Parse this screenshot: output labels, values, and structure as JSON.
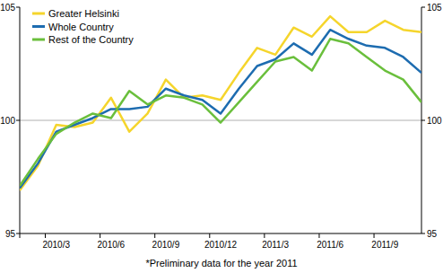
{
  "chart_data": {
    "type": "line",
    "footnote": "*Preliminary data for the year 2011",
    "categories": [
      null,
      null,
      "2010/3",
      null,
      null,
      "2010/6",
      null,
      null,
      "2010/9",
      null,
      null,
      "2010/12",
      null,
      null,
      "2011/3",
      null,
      null,
      "2011/6",
      null,
      null,
      "2011/9",
      null,
      null
    ],
    "series": [
      {
        "name": "Greater Helsinki",
        "color": "#f5d52c",
        "values": [
          96.9,
          98.0,
          99.8,
          99.7,
          99.9,
          101.0,
          99.5,
          100.3,
          101.8,
          101.0,
          101.1,
          100.9,
          102.1,
          103.2,
          102.9,
          104.1,
          103.7,
          104.6,
          103.9,
          103.9,
          104.4,
          104.0,
          103.9
        ]
      },
      {
        "name": "Whole Country",
        "color": "#1d6cb0",
        "values": [
          97.0,
          98.1,
          99.5,
          99.8,
          100.1,
          100.5,
          100.5,
          100.6,
          101.4,
          101.1,
          100.9,
          100.3,
          101.4,
          102.4,
          102.7,
          103.4,
          102.9,
          104.0,
          103.6,
          103.3,
          103.2,
          102.8,
          102.1
        ]
      },
      {
        "name": "Rest of the Country",
        "color": "#6abf3c",
        "values": [
          97.1,
          98.3,
          99.4,
          99.9,
          100.3,
          100.1,
          101.3,
          100.7,
          101.1,
          101.0,
          100.7,
          99.9,
          100.8,
          101.7,
          102.6,
          102.8,
          102.2,
          103.6,
          103.4,
          102.8,
          102.2,
          101.8,
          100.8
        ]
      }
    ],
    "ylim": [
      95,
      105
    ],
    "yticks": [
      95,
      100,
      105
    ],
    "grid": true,
    "legend": "top-left"
  }
}
